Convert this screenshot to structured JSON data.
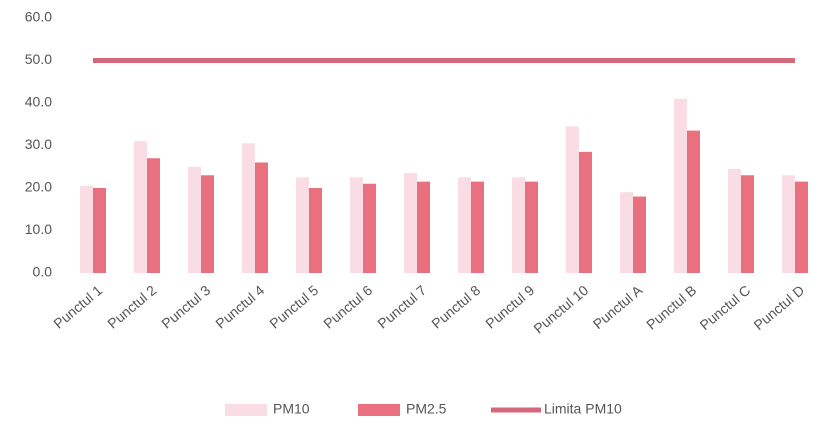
{
  "chart_data": {
    "type": "bar",
    "categories": [
      "Punctul 1",
      "Punctul 2",
      "Punctul 3",
      "Punctul 4",
      "Punctul 5",
      "Punctul 6",
      "Punctul 7",
      "Punctul 8",
      "Punctul 9",
      "Punctul 10",
      "Punctul A",
      "Punctul B",
      "Punctul C",
      "Punctul D"
    ],
    "series": [
      {
        "name": "PM10",
        "color": "#f9dce4",
        "values": [
          20.5,
          31,
          25,
          30.5,
          22.5,
          22.5,
          23.5,
          22.5,
          22.5,
          34.5,
          19,
          41,
          24.5,
          23
        ]
      },
      {
        "name": "PM2.5",
        "color": "#e9707f",
        "values": [
          20,
          27,
          23,
          26,
          20,
          21,
          21.5,
          21.5,
          21.5,
          28.5,
          18,
          33.5,
          23,
          21.5
        ]
      },
      {
        "name": "Limita PM10",
        "color": "#d4677a",
        "type": "line",
        "values": [
          50,
          50,
          50,
          50,
          50,
          50,
          50,
          50,
          50,
          50,
          50,
          50,
          50,
          50
        ]
      }
    ],
    "ylim": [
      0,
      60
    ],
    "yticks": [
      {
        "value": 0,
        "label": "0.0"
      },
      {
        "value": 10,
        "label": "10.0"
      },
      {
        "value": 20,
        "label": "20.0"
      },
      {
        "value": 30,
        "label": "30.0"
      },
      {
        "value": 40,
        "label": "40.0"
      },
      {
        "value": 50,
        "label": "50.0"
      },
      {
        "value": 60,
        "label": "60.0"
      }
    ],
    "grid": false,
    "legend": "bottom"
  }
}
